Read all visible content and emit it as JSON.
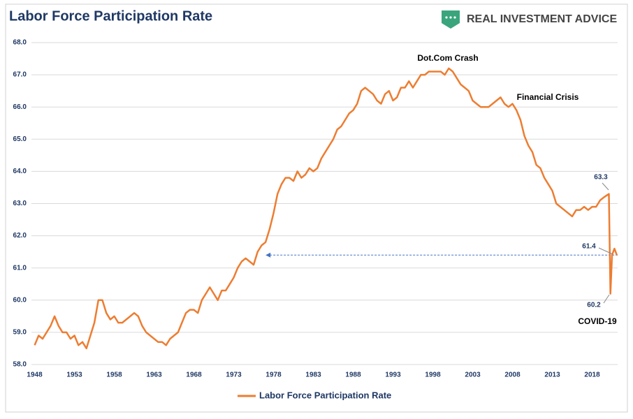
{
  "chart_data": {
    "type": "line",
    "title": "Labor Force Participation Rate",
    "brand": "REAL INVESTMENT ADVICE",
    "x": [
      1948,
      1948.5,
      1949,
      1949.5,
      1950,
      1950.5,
      1951,
      1951.5,
      1952,
      1952.5,
      1953,
      1953.5,
      1954,
      1954.5,
      1955,
      1955.5,
      1956,
      1956.5,
      1957,
      1957.5,
      1958,
      1958.5,
      1959,
      1959.5,
      1960,
      1960.5,
      1961,
      1961.5,
      1962,
      1962.5,
      1963,
      1963.5,
      1964,
      1964.5,
      1965,
      1965.5,
      1966,
      1966.5,
      1967,
      1967.5,
      1968,
      1968.5,
      1969,
      1969.5,
      1970,
      1970.5,
      1971,
      1971.5,
      1972,
      1972.5,
      1973,
      1973.5,
      1974,
      1974.5,
      1975,
      1975.5,
      1976,
      1976.5,
      1977,
      1977.5,
      1978,
      1978.5,
      1979,
      1979.5,
      1980,
      1980.5,
      1981,
      1981.5,
      1982,
      1982.5,
      1983,
      1983.5,
      1984,
      1984.5,
      1985,
      1985.5,
      1986,
      1986.5,
      1987,
      1987.5,
      1988,
      1988.5,
      1989,
      1989.5,
      1990,
      1990.5,
      1991,
      1991.5,
      1992,
      1992.5,
      1993,
      1993.5,
      1994,
      1994.5,
      1995,
      1995.5,
      1996,
      1996.5,
      1997,
      1997.5,
      1998,
      1998.5,
      1999,
      1999.5,
      2000,
      2000.5,
      2001,
      2001.5,
      2002,
      2002.5,
      2003,
      2003.5,
      2004,
      2004.5,
      2005,
      2005.5,
      2006,
      2006.5,
      2007,
      2007.5,
      2008,
      2008.5,
      2009,
      2009.5,
      2010,
      2010.5,
      2011,
      2011.5,
      2012,
      2012.5,
      2013,
      2013.5,
      2014,
      2014.5,
      2015,
      2015.5,
      2016,
      2016.5,
      2017,
      2017.5,
      2018,
      2018.5,
      2019,
      2019.5,
      2020.1,
      2020.3,
      2020.5,
      2020.8,
      2021.1
    ],
    "series": [
      {
        "name": "Labor Force Participation Rate",
        "color": "#ed7d31",
        "values": [
          58.6,
          58.9,
          58.8,
          59.0,
          59.2,
          59.5,
          59.2,
          59.0,
          59.0,
          58.8,
          58.9,
          58.6,
          58.7,
          58.5,
          58.9,
          59.3,
          60.0,
          60.0,
          59.6,
          59.4,
          59.5,
          59.3,
          59.3,
          59.4,
          59.5,
          59.6,
          59.5,
          59.2,
          59.0,
          58.9,
          58.8,
          58.7,
          58.7,
          58.6,
          58.8,
          58.9,
          59.0,
          59.3,
          59.6,
          59.7,
          59.7,
          59.6,
          60.0,
          60.2,
          60.4,
          60.2,
          60.0,
          60.3,
          60.3,
          60.5,
          60.7,
          61.0,
          61.2,
          61.3,
          61.2,
          61.1,
          61.5,
          61.7,
          61.8,
          62.2,
          62.7,
          63.3,
          63.6,
          63.8,
          63.8,
          63.7,
          64.0,
          63.8,
          63.9,
          64.1,
          64.0,
          64.1,
          64.4,
          64.6,
          64.8,
          65.0,
          65.3,
          65.4,
          65.6,
          65.8,
          65.9,
          66.1,
          66.5,
          66.6,
          66.5,
          66.4,
          66.2,
          66.1,
          66.4,
          66.5,
          66.2,
          66.3,
          66.6,
          66.6,
          66.8,
          66.6,
          66.8,
          67.0,
          67.0,
          67.1,
          67.1,
          67.1,
          67.1,
          67.0,
          67.2,
          67.1,
          66.9,
          66.7,
          66.6,
          66.5,
          66.2,
          66.1,
          66.0,
          66.0,
          66.0,
          66.1,
          66.2,
          66.3,
          66.1,
          66.0,
          66.1,
          65.9,
          65.6,
          65.1,
          64.8,
          64.6,
          64.2,
          64.1,
          63.8,
          63.6,
          63.4,
          63.0,
          62.9,
          62.8,
          62.7,
          62.6,
          62.8,
          62.8,
          62.9,
          62.8,
          62.9,
          62.9,
          63.1,
          63.2,
          63.3,
          60.2,
          61.4,
          61.6,
          61.4
        ]
      }
    ],
    "xlim": [
      1947.6,
      2021.2
    ],
    "xticks": [
      1948,
      1953,
      1958,
      1963,
      1968,
      1973,
      1978,
      1983,
      1988,
      1993,
      1998,
      2003,
      2008,
      2013,
      2018
    ],
    "ylim": [
      58,
      68
    ],
    "yticks": [
      {
        "value": 58,
        "label": "58.0"
      },
      {
        "value": 59,
        "label": "59.0"
      },
      {
        "value": 60,
        "label": "60.0"
      },
      {
        "value": 61,
        "label": "61.0"
      },
      {
        "value": 62,
        "label": "62.0"
      },
      {
        "value": 63,
        "label": "63.0"
      },
      {
        "value": 64,
        "label": "64.0"
      },
      {
        "value": 65,
        "label": "65.0"
      },
      {
        "value": 66,
        "label": "66.0"
      },
      {
        "value": 67,
        "label": "67.0"
      },
      {
        "value": 68,
        "label": "68.0"
      }
    ],
    "grid": true,
    "annotations": [
      "Dot.Com Crash",
      "Financial Crisis",
      "COVID-19"
    ],
    "point_labels": [
      63.3,
      61.4,
      60.2
    ],
    "reference_line": {
      "value": 61.4,
      "x_start": 1977,
      "color": "#4472c4"
    },
    "legend": "bottom"
  }
}
